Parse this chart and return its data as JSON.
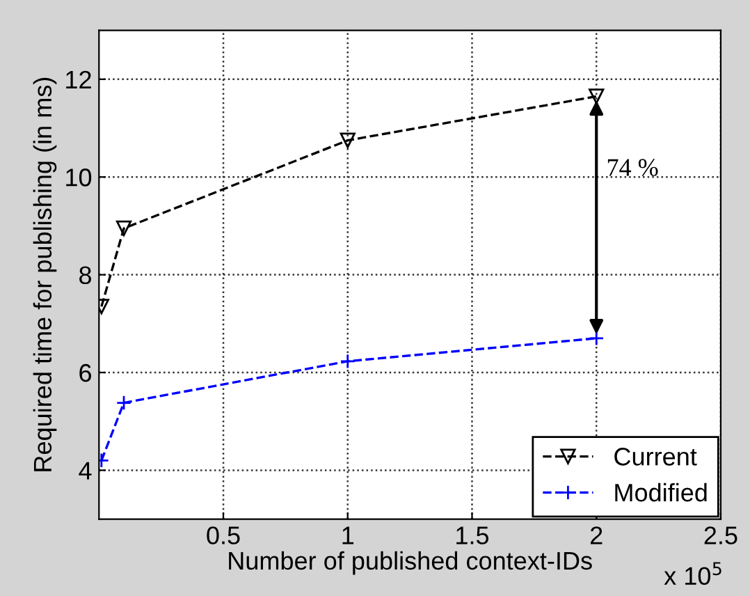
{
  "chart_data": {
    "type": "line",
    "xlabel": "Number of published context-IDs",
    "ylabel": "Required time for publishing (in ms)",
    "x": [
      0.01,
      0.1,
      1,
      2
    ],
    "series": [
      {
        "name": "Current",
        "color": "#000000",
        "values": [
          7.35,
          8.95,
          10.75,
          11.65
        ],
        "marker": "triangle"
      },
      {
        "name": "Modified",
        "color": "#0000ff",
        "values": [
          4.2,
          5.38,
          6.23,
          6.7
        ],
        "marker": "cross"
      }
    ],
    "line_style": "dashed",
    "xlim": [
      0,
      2.5
    ],
    "xticks": [
      0.5,
      1,
      1.5,
      2,
      2.5
    ],
    "ylim": [
      3,
      13
    ],
    "yticks": [
      4,
      6,
      8,
      10,
      12
    ],
    "grid": true,
    "legend": "bottom right",
    "annotations": [
      "x 10$^{5}$",
      "74 %"
    ]
  }
}
